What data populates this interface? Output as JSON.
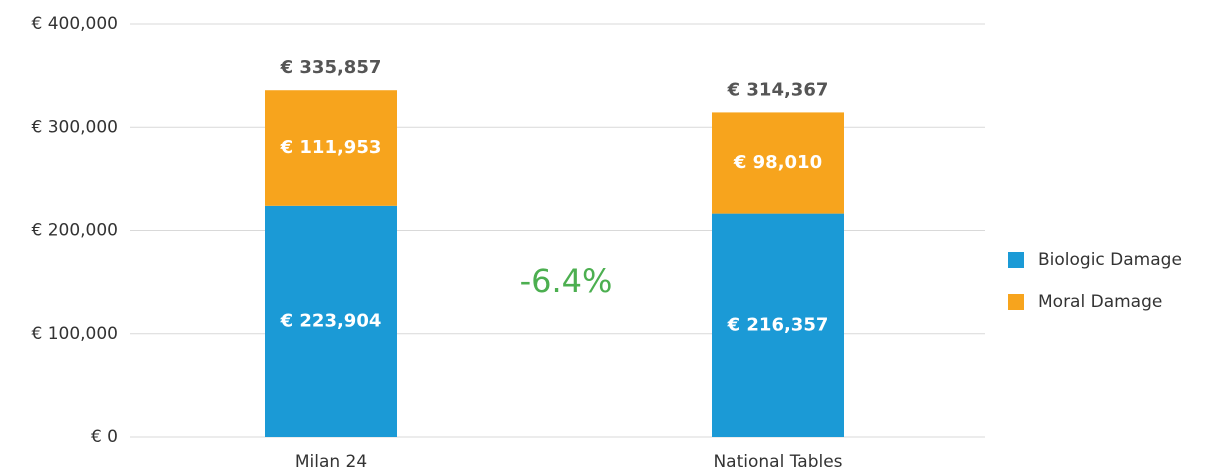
{
  "chart_data": {
    "type": "stacked-bar",
    "categories": [
      "Milan 24",
      "National Tables"
    ],
    "series": [
      {
        "name": "Biologic Damage",
        "color": "#1b9ad6",
        "values": [
          223904,
          216357
        ],
        "value_labels": [
          "€ 223,904",
          "€ 216,357"
        ]
      },
      {
        "name": "Moral Damage",
        "color": "#f7a41d",
        "values": [
          111953,
          98010
        ],
        "value_labels": [
          "€ 111,953",
          "€ 98,010"
        ]
      }
    ],
    "total_labels": [
      "€ 335,857",
      "€ 314,367"
    ],
    "annotation": "-6.4%",
    "ylim": [
      0,
      400000
    ],
    "yticks": [
      {
        "value": 0,
        "label": "€ 0"
      },
      {
        "value": 100000,
        "label": "€ 100,000"
      },
      {
        "value": 200000,
        "label": "€ 200,000"
      },
      {
        "value": 300000,
        "label": "€ 300,000"
      },
      {
        "value": 400000,
        "label": "€ 400,000"
      }
    ],
    "grid": true,
    "legend": "right"
  }
}
